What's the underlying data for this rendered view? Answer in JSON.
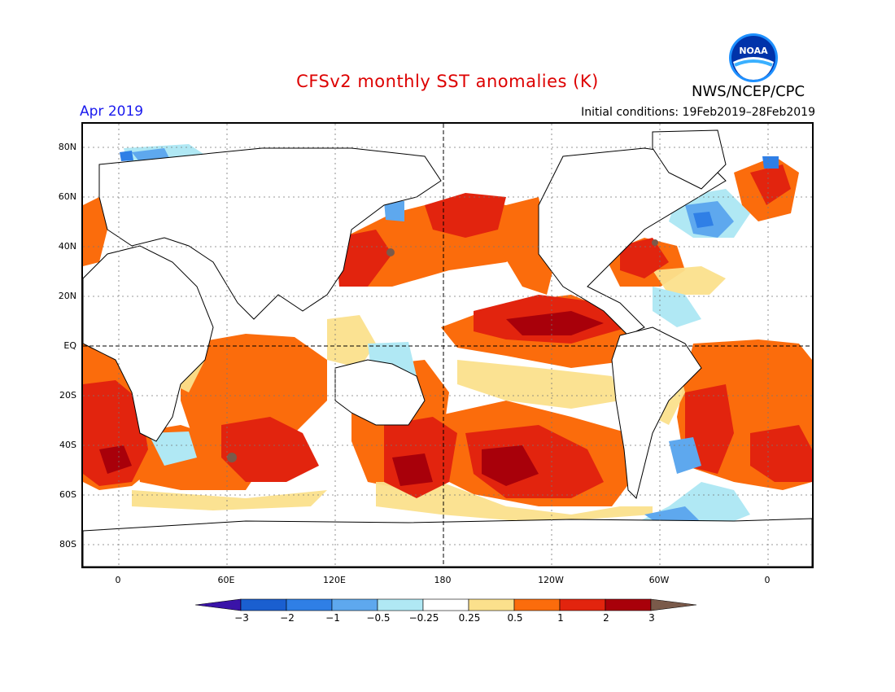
{
  "header": {
    "title": "CFSv2 monthly SST anomalies (K)",
    "month": "Apr 2019",
    "initial_conditions": "Initial conditions: 19Feb2019–28Feb2019",
    "agency": "NWS/NCEP/CPC",
    "logo_text": "NOAA"
  },
  "map": {
    "lat_labels": [
      "80N",
      "60N",
      "40N",
      "20N",
      "EQ",
      "20S",
      "40S",
      "60S",
      "80S"
    ],
    "lon_labels": [
      "0",
      "60E",
      "120E",
      "180",
      "120W",
      "60W",
      "0"
    ]
  },
  "colorbar": {
    "labels": [
      "−3",
      "−2",
      "−1",
      "−0.5",
      "−0.25",
      "0.25",
      "0.5",
      "1",
      "2",
      "3"
    ],
    "colors": [
      "#3a14a8",
      "#1a5fd0",
      "#2f7fe6",
      "#5ea8ee",
      "#b0e8f4",
      "#ffffff",
      "#fbe08c",
      "#fb6c0c",
      "#e2240e",
      "#a8000a",
      "#7a5a4a"
    ]
  }
}
